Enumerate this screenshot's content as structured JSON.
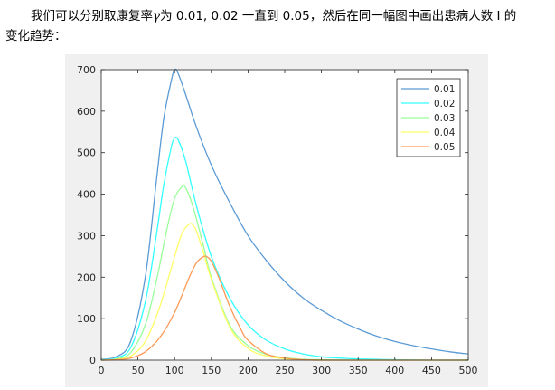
{
  "text": {
    "line1_a": "我们可以分别取康复率",
    "line1_gamma": "γ",
    "line1_b": "为 0.01, 0.02 一直到 0.05，然后在同一幅图中画出患病人数 I 的",
    "line2": "变化趋势："
  },
  "chart_data": {
    "type": "line",
    "title": "",
    "xlabel": "",
    "ylabel": "",
    "xlim": [
      0,
      500
    ],
    "ylim": [
      0,
      700
    ],
    "xticks": [
      0,
      50,
      100,
      150,
      200,
      250,
      300,
      350,
      400,
      450,
      500
    ],
    "yticks": [
      0,
      100,
      200,
      300,
      400,
      500,
      600,
      700
    ],
    "grid": false,
    "legend_position": "top-right",
    "series": [
      {
        "name": "0.01",
        "color": "#5b9bd5",
        "x": [
          0,
          20,
          40,
          60,
          75,
          85,
          95,
          100,
          105,
          115,
          130,
          150,
          175,
          200,
          225,
          250,
          275,
          300,
          325,
          350,
          375,
          400,
          425,
          450,
          475,
          500
        ],
        "y": [
          2,
          8,
          45,
          200,
          430,
          580,
          670,
          700,
          690,
          640,
          560,
          470,
          380,
          300,
          240,
          190,
          150,
          120,
          95,
          75,
          58,
          45,
          35,
          27,
          20,
          15
        ]
      },
      {
        "name": "0.02",
        "color": "#33ffff",
        "x": [
          0,
          20,
          40,
          60,
          75,
          85,
          95,
          100,
          105,
          115,
          130,
          150,
          175,
          200,
          225,
          250,
          275,
          300,
          325,
          350,
          375,
          400,
          450,
          500
        ],
        "y": [
          1,
          5,
          30,
          140,
          300,
          420,
          510,
          535,
          530,
          480,
          370,
          250,
          150,
          85,
          48,
          27,
          15,
          8,
          5,
          3,
          2,
          1,
          0,
          0
        ]
      },
      {
        "name": "0.03",
        "color": "#99ff99",
        "x": [
          0,
          20,
          40,
          60,
          75,
          90,
          100,
          110,
          115,
          125,
          140,
          150,
          175,
          200,
          225,
          250,
          275,
          300,
          350,
          400,
          450,
          500
        ],
        "y": [
          0,
          3,
          18,
          85,
          190,
          320,
          390,
          418,
          415,
          370,
          270,
          200,
          85,
          35,
          14,
          6,
          2,
          1,
          0,
          0,
          0,
          0
        ]
      },
      {
        "name": "0.04",
        "color": "#ffff66",
        "x": [
          0,
          20,
          40,
          60,
          80,
          100,
          110,
          120,
          125,
          130,
          140,
          150,
          175,
          200,
          225,
          250,
          275,
          300,
          350,
          400,
          450,
          500
        ],
        "y": [
          0,
          2,
          10,
          45,
          130,
          250,
          305,
          328,
          325,
          310,
          255,
          195,
          80,
          28,
          10,
          3,
          1,
          0,
          0,
          0,
          0,
          0
        ]
      },
      {
        "name": "0.05",
        "color": "#ff9955",
        "x": [
          0,
          20,
          40,
          60,
          80,
          100,
          120,
          130,
          140,
          145,
          150,
          160,
          175,
          190,
          200,
          225,
          250,
          275,
          300,
          350,
          400,
          450,
          500
        ],
        "y": [
          0,
          1,
          5,
          20,
          55,
          115,
          200,
          235,
          250,
          248,
          238,
          200,
          130,
          75,
          48,
          15,
          5,
          1,
          0,
          0,
          0,
          0,
          0
        ]
      }
    ]
  }
}
